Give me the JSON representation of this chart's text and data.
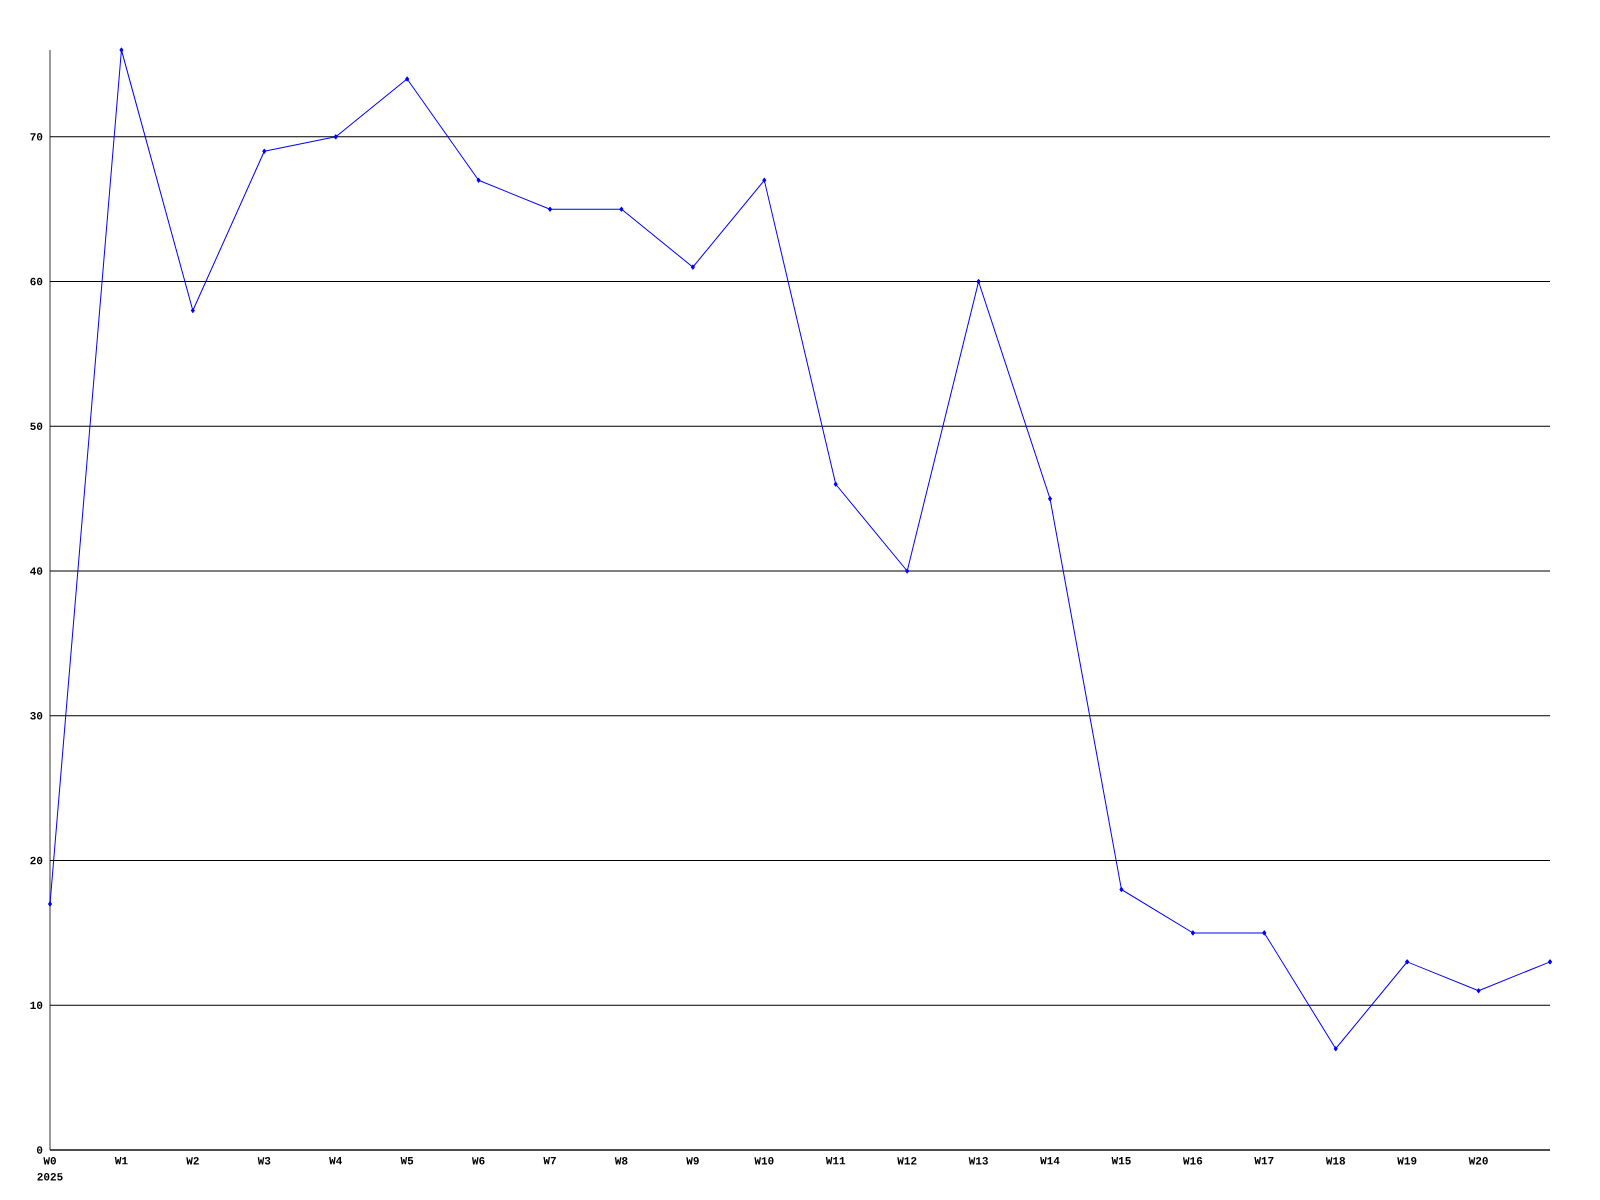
{
  "chart_data": {
    "type": "line",
    "categories": [
      "W0",
      "W1",
      "W2",
      "W3",
      "W4",
      "W5",
      "W6",
      "W7",
      "W8",
      "W9",
      "W10",
      "W11",
      "W12",
      "W13",
      "W14",
      "W15",
      "W16",
      "W17",
      "W18",
      "W19",
      "W20",
      null
    ],
    "values": [
      17,
      76,
      58,
      69,
      70,
      74,
      67,
      65,
      65,
      61,
      67,
      46,
      40,
      60,
      45,
      18,
      15,
      15,
      7,
      13,
      11,
      13
    ],
    "color": "#0000ff",
    "marker": "diamond",
    "grid": "y",
    "ylim": [
      0,
      76
    ],
    "yticks": [
      0,
      10,
      20,
      30,
      40,
      50,
      60,
      70
    ],
    "annotations": [
      "2025"
    ]
  }
}
